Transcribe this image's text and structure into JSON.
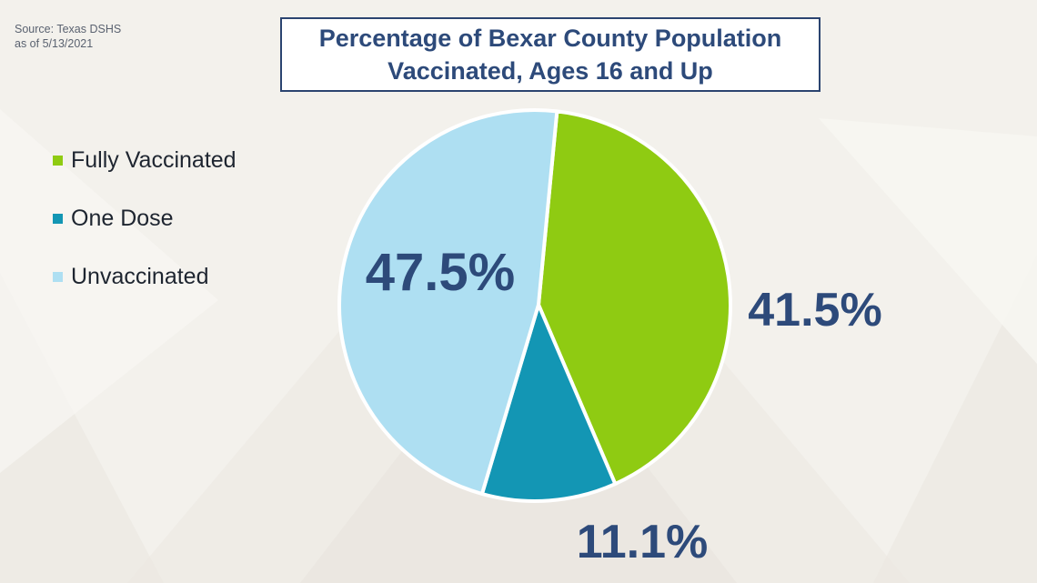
{
  "source": {
    "line1": "Source: Texas DSHS",
    "line2": "as of 5/13/2021"
  },
  "title": {
    "line1": "Percentage of Bexar County Population",
    "line2": "Vaccinated, Ages 16 and Up"
  },
  "legend": [
    {
      "label": "Fully Vaccinated",
      "color": "#8fcb12"
    },
    {
      "label": "One Dose",
      "color": "#1396b4"
    },
    {
      "label": "Unvaccinated",
      "color": "#aedff2"
    }
  ],
  "chart_data": {
    "type": "pie",
    "title": "Percentage of Bexar County Population Vaccinated, Ages 16 and Up",
    "legend_position": "left",
    "slices": [
      {
        "label": "Fully Vaccinated",
        "value": 41.5,
        "display": "41.5%",
        "color": "#8fcb12"
      },
      {
        "label": "One Dose",
        "value": 11.1,
        "display": "11.1%",
        "color": "#1396b4"
      },
      {
        "label": "Unvaccinated",
        "value": 47.5,
        "display": "47.5%",
        "color": "#aedff2"
      }
    ]
  }
}
